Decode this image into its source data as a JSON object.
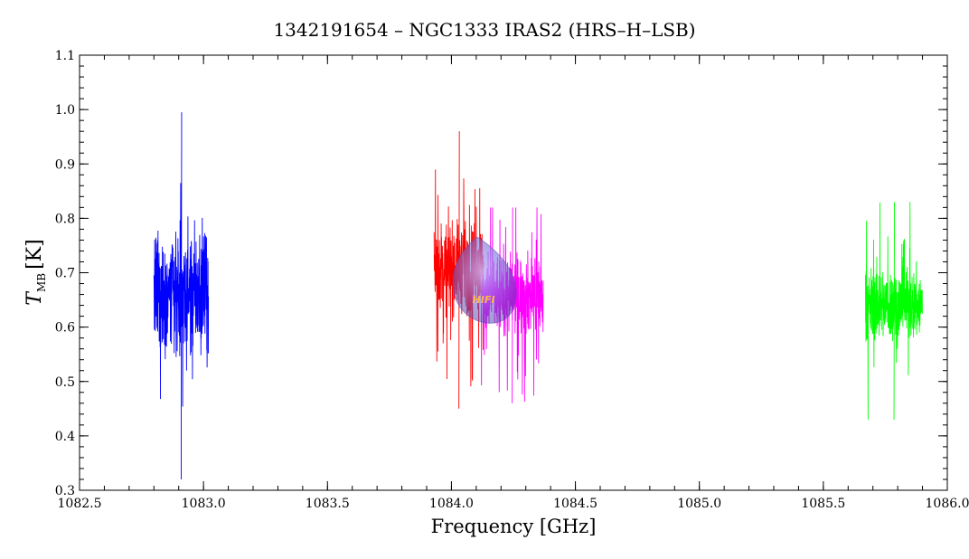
{
  "chart_data": {
    "type": "line",
    "title": "1342191654 – NGC1333 IRAS2 (HRS–H–LSB)",
    "xlabel": "Frequency [GHz]",
    "ylabel": {
      "main": "T",
      "subscript": "MB",
      "unit": "[K]"
    },
    "xlim": [
      1082.5,
      1086.0
    ],
    "ylim": [
      0.3,
      1.1
    ],
    "xticks": [
      "1082.5",
      "1083.0",
      "1083.5",
      "1084.0",
      "1084.5",
      "1085.0",
      "1085.5",
      "1086.0"
    ],
    "yticks": [
      "0.3",
      "0.4",
      "0.5",
      "0.6",
      "0.7",
      "0.8",
      "0.9",
      "1.0",
      "1.1"
    ],
    "grid": false,
    "legend": "none",
    "series": [
      {
        "color": "#0000ff",
        "x_range": [
          1082.8,
          1083.02
        ],
        "mean": 0.66,
        "noise": 0.09,
        "min": 0.32,
        "max": 0.995
      },
      {
        "color": "#ff0000",
        "x_range": [
          1083.93,
          1084.13
        ],
        "mean": 0.71,
        "noise": 0.065,
        "min": 0.45,
        "max": 0.96
      },
      {
        "color": "#ff00ff",
        "x_range": [
          1084.12,
          1084.37
        ],
        "mean": 0.66,
        "noise": 0.06,
        "min": 0.46,
        "max": 0.82
      },
      {
        "color": "#00ff00",
        "x_range": [
          1085.67,
          1085.9
        ],
        "mean": 0.64,
        "noise": 0.055,
        "min": 0.43,
        "max": 0.83
      }
    ]
  },
  "watermark": {
    "text": "HIFI"
  }
}
